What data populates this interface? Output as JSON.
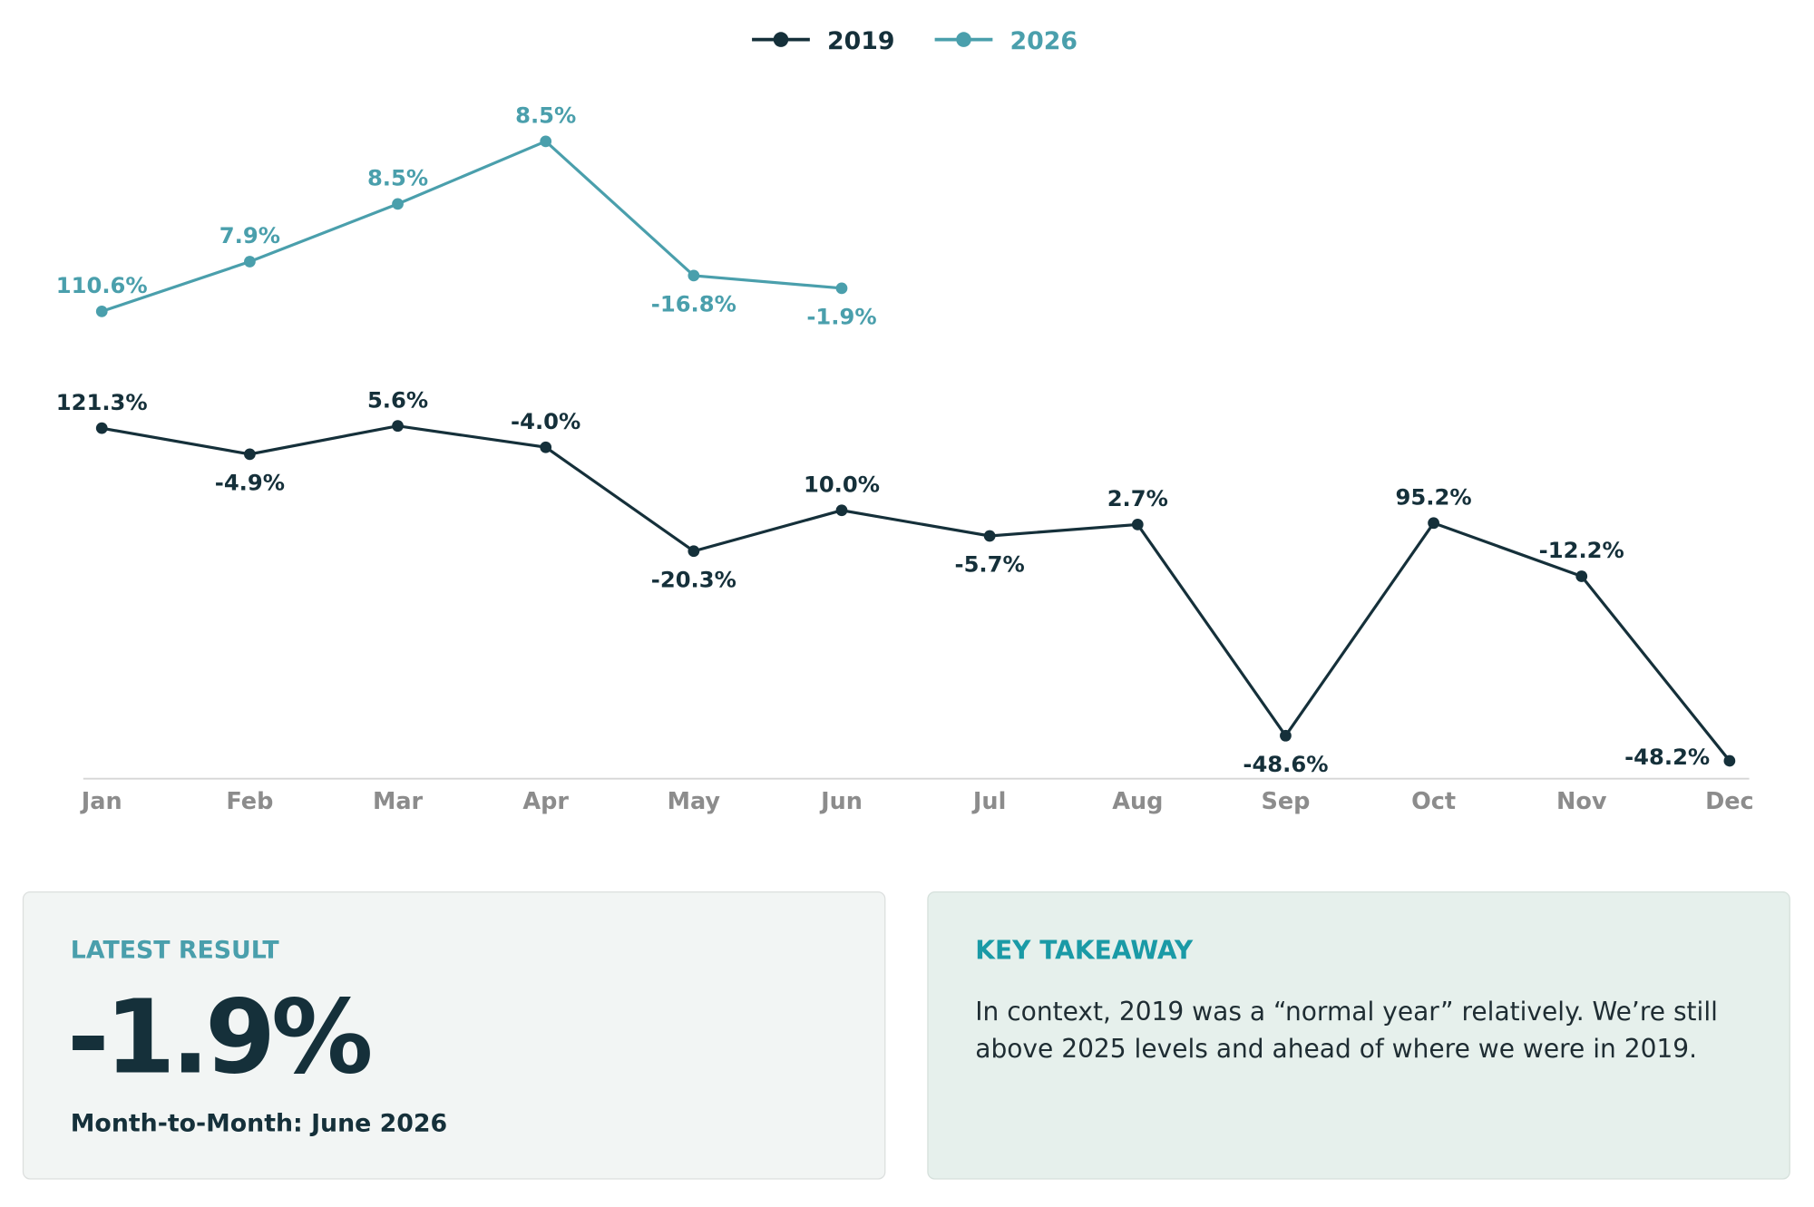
{
  "chart_data": {
    "type": "line",
    "categories": [
      "Jan",
      "Feb",
      "Mar",
      "Apr",
      "May",
      "Jun",
      "Jul",
      "Aug",
      "Sep",
      "Oct",
      "Nov",
      "Dec"
    ],
    "legend": "top",
    "series": [
      {
        "name": "2019",
        "color": "#15303a",
        "values": [
          121.3,
          -4.9,
          5.6,
          -4.0,
          -20.3,
          10.0,
          -5.7,
          2.7,
          -48.6,
          95.2,
          -12.2,
          -48.2
        ],
        "value_labels": [
          "121.3%",
          "-4.9%",
          "5.6%",
          "-4.0%",
          "-20.3%",
          "10.0%",
          "-5.7%",
          "2.7%",
          "-48.6%",
          "95.2%",
          "-12.2%",
          "-48.2%"
        ]
      },
      {
        "name": "2026",
        "color": "#4a9fac",
        "values": [
          110.6,
          7.9,
          8.5,
          8.5,
          -16.8,
          -1.9,
          null,
          null,
          null,
          null,
          null,
          null
        ],
        "value_labels": [
          "110.6%",
          "7.9%",
          "8.5%",
          "8.5%",
          "-16.8%",
          "-1.9%",
          null,
          null,
          null,
          null,
          null,
          null
        ]
      }
    ]
  },
  "cards": {
    "latest": {
      "title": "LATEST RESULT",
      "value": "-1.9%",
      "caption": "Month-to-Month: June 2026"
    },
    "takeaway": {
      "title": "KEY TAKEAWAY",
      "text": "In context, 2019 was a “normal year” relatively. We’re still above 2025 levels and ahead of where we were in 2019."
    }
  }
}
